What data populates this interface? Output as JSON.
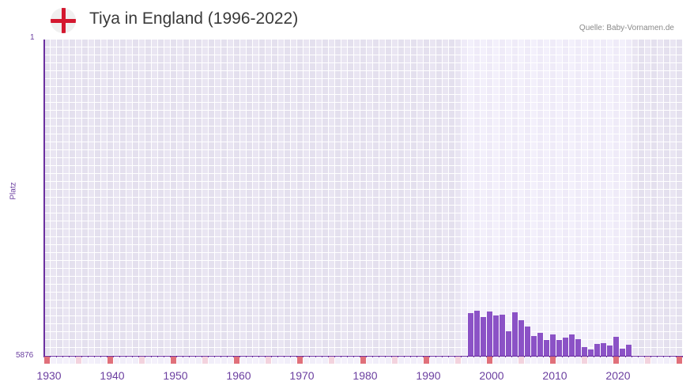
{
  "header": {
    "title": "Tiya in England (1996-2022)",
    "source": "Quelle: Baby-Vornamen.de",
    "flag_icon": "england-flag-icon"
  },
  "axes": {
    "y_top_label": "1",
    "y_bottom_label": "5876",
    "y_title": "Platz",
    "x_ticks": [
      "1930",
      "1940",
      "1950",
      "1960",
      "1970",
      "1980",
      "1990",
      "2000",
      "2010",
      "2020"
    ]
  },
  "colors": {
    "bar": "#8b52c6",
    "axis": "#6b2fa0",
    "grid_bg_dark": "#e4e0ee",
    "grid_bg_light": "#e9e5f2",
    "highlight_bg_dark": "#efebf8",
    "highlight_bg_light": "#f3f0fb",
    "marker_red": "#e0707a",
    "marker_pink": "#f3d3de",
    "marker_base": "#f1eef9"
  },
  "chart_data": {
    "type": "bar",
    "title": "Tiya in England (1996-2022)",
    "xlabel": "",
    "ylabel": "Platz",
    "y_inverted": true,
    "ylim": [
      1,
      5876
    ],
    "xlim": [
      1929,
      2029
    ],
    "highlight_range": [
      1995,
      2021
    ],
    "grid": true,
    "categories": [
      1996,
      1997,
      1998,
      1999,
      2000,
      2001,
      2002,
      2003,
      2004,
      2005,
      2006,
      2007,
      2008,
      2009,
      2010,
      2011,
      2012,
      2013,
      2014,
      2015,
      2016,
      2017,
      2018,
      2019,
      2020,
      2021
    ],
    "values": [
      5083,
      5039,
      5157,
      5053,
      5127,
      5112,
      5421,
      5068,
      5215,
      5333,
      5509,
      5450,
      5582,
      5480,
      5582,
      5538,
      5480,
      5568,
      5714,
      5759,
      5656,
      5641,
      5685,
      5523,
      5744,
      5671
    ],
    "x_tick_labels": [
      "1930",
      "1940",
      "1950",
      "1960",
      "1970",
      "1980",
      "1990",
      "2000",
      "2010",
      "2020"
    ],
    "y_tick_labels": [
      "1",
      "5876"
    ],
    "source": "Quelle: Baby-Vornamen.de"
  }
}
